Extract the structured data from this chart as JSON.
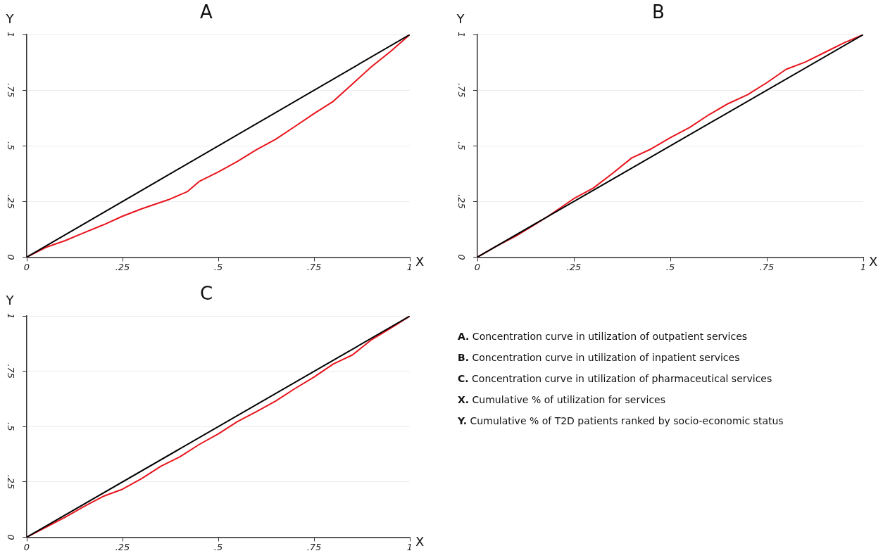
{
  "chart_data": [
    {
      "type": "line",
      "title": "A",
      "xlabel": "X",
      "ylabel": "Y",
      "xlim": [
        0,
        1
      ],
      "ylim": [
        0,
        1
      ],
      "xticks": [
        {
          "value": 0,
          "label": "0"
        },
        {
          "value": 0.25,
          "label": ".25"
        },
        {
          "value": 0.5,
          "label": ".5"
        },
        {
          "value": 0.75,
          "label": ".75"
        },
        {
          "value": 1,
          "label": "1"
        }
      ],
      "yticks": [
        {
          "value": 0,
          "label": "0"
        },
        {
          "value": 0.25,
          "label": ".25"
        },
        {
          "value": 0.5,
          "label": ".5"
        },
        {
          "value": 0.75,
          "label": ".75"
        },
        {
          "value": 1,
          "label": "1"
        }
      ],
      "grid": "y",
      "marker": "none",
      "line_style": "solid",
      "series": [
        {
          "color": "#000000",
          "x": [
            0,
            1
          ],
          "values": [
            0,
            1
          ]
        },
        {
          "color": "#e8141c",
          "x": [
            0,
            0.05,
            0.1,
            0.15,
            0.2,
            0.25,
            0.3,
            0.37,
            0.42,
            0.45,
            0.5,
            0.55,
            0.6,
            0.65,
            0.7,
            0.75,
            0.8,
            0.85,
            0.9,
            0.95,
            1
          ],
          "values": [
            0,
            0.044,
            0.074,
            0.11,
            0.145,
            0.184,
            0.217,
            0.258,
            0.295,
            0.34,
            0.383,
            0.43,
            0.483,
            0.53,
            0.587,
            0.645,
            0.7,
            0.778,
            0.856,
            0.925,
            1
          ]
        }
      ]
    },
    {
      "type": "line",
      "title": "B",
      "xlabel": "X",
      "ylabel": "Y",
      "xlim": [
        0,
        1
      ],
      "ylim": [
        0,
        1
      ],
      "xticks": [
        {
          "value": 0,
          "label": "0"
        },
        {
          "value": 0.25,
          "label": ".25"
        },
        {
          "value": 0.5,
          "label": ".5"
        },
        {
          "value": 0.75,
          "label": ".75"
        },
        {
          "value": 1,
          "label": "1"
        }
      ],
      "yticks": [
        {
          "value": 0,
          "label": "0"
        },
        {
          "value": 0.25,
          "label": ".25"
        },
        {
          "value": 0.5,
          "label": ".5"
        },
        {
          "value": 0.75,
          "label": ".75"
        },
        {
          "value": 1,
          "label": "1"
        }
      ],
      "grid": "y",
      "marker": "none",
      "line_style": "solid",
      "series": [
        {
          "color": "#000000",
          "x": [
            0,
            1
          ],
          "values": [
            0,
            1
          ]
        },
        {
          "color": "#e8141c",
          "x": [
            0,
            0.05,
            0.1,
            0.18,
            0.25,
            0.3,
            0.35,
            0.4,
            0.45,
            0.5,
            0.55,
            0.6,
            0.65,
            0.7,
            0.75,
            0.8,
            0.85,
            0.9,
            0.95,
            1
          ],
          "values": [
            0,
            0.05,
            0.095,
            0.18,
            0.263,
            0.31,
            0.376,
            0.446,
            0.486,
            0.537,
            0.583,
            0.64,
            0.69,
            0.73,
            0.784,
            0.844,
            0.877,
            0.92,
            0.963,
            1
          ]
        }
      ]
    },
    {
      "type": "line",
      "title": "C",
      "xlabel": "X",
      "ylabel": "Y",
      "xlim": [
        0,
        1
      ],
      "ylim": [
        0,
        1
      ],
      "xticks": [
        {
          "value": 0,
          "label": "0"
        },
        {
          "value": 0.25,
          "label": ".25"
        },
        {
          "value": 0.5,
          "label": ".5"
        },
        {
          "value": 0.75,
          "label": ".75"
        },
        {
          "value": 1,
          "label": "1"
        }
      ],
      "yticks": [
        {
          "value": 0,
          "label": "0"
        },
        {
          "value": 0.25,
          "label": ".25"
        },
        {
          "value": 0.5,
          "label": ".5"
        },
        {
          "value": 0.75,
          "label": ".75"
        },
        {
          "value": 1,
          "label": "1"
        }
      ],
      "grid": "y",
      "marker": "none",
      "line_style": "solid",
      "series": [
        {
          "color": "#000000",
          "x": [
            0,
            1
          ],
          "values": [
            0,
            1
          ]
        },
        {
          "color": "#e8141c",
          "x": [
            0,
            0.05,
            0.1,
            0.15,
            0.2,
            0.25,
            0.3,
            0.35,
            0.4,
            0.45,
            0.5,
            0.55,
            0.6,
            0.65,
            0.7,
            0.75,
            0.8,
            0.85,
            0.9,
            0.95,
            1
          ],
          "values": [
            0,
            0.045,
            0.09,
            0.139,
            0.185,
            0.217,
            0.265,
            0.321,
            0.364,
            0.419,
            0.467,
            0.523,
            0.568,
            0.616,
            0.672,
            0.724,
            0.783,
            0.824,
            0.893,
            0.945,
            1
          ]
        }
      ]
    },
    {
      "type": "other",
      "annotations": [
        "A. Concentration curve in utilization of outpatient services",
        "B. Concentration curve in utilization of inpatient services",
        "C. Concentration curve in utilization of pharmaceutical services",
        "X. Cumulative % of utilization for services",
        "Y. Cumulative % of T2D patients ranked by socio-economic status"
      ]
    }
  ]
}
